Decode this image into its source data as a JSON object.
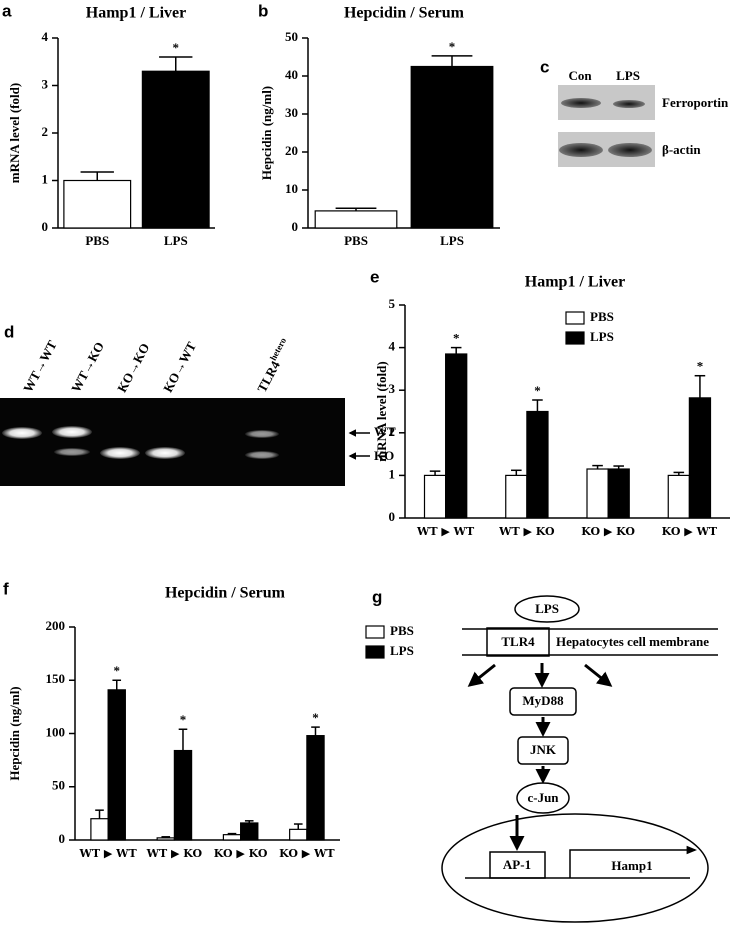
{
  "chart_data": [
    {
      "type": "bar",
      "label": "a",
      "title": "Hamp1 / Liver",
      "ylabel": "mRNA level (fold)",
      "categories": [
        "PBS",
        "LPS"
      ],
      "series": [
        {
          "values": [
            1.0,
            3.3
          ],
          "errors": [
            0.18,
            0.3
          ],
          "colors": [
            "#ffffff",
            "#000000"
          ],
          "annotations": [
            null,
            "*"
          ]
        }
      ],
      "ylim": [
        0,
        4
      ],
      "yticks": [
        0,
        1,
        2,
        3,
        4
      ]
    },
    {
      "type": "bar",
      "label": "b",
      "title": "Hepcidin / Serum",
      "ylabel": "Hepcidin (ng/ml)",
      "categories": [
        "PBS",
        "LPS"
      ],
      "series": [
        {
          "values": [
            4.5,
            42.5
          ],
          "errors": [
            0.7,
            2.8
          ],
          "colors": [
            "#ffffff",
            "#000000"
          ],
          "annotations": [
            null,
            "*"
          ]
        }
      ],
      "ylim": [
        0,
        50
      ],
      "yticks": [
        0,
        10,
        20,
        30,
        40,
        50
      ]
    },
    {
      "type": "bar",
      "label": "e",
      "title": "Hamp1 / Liver",
      "ylabel": "mRNA level (fold)",
      "categories": [
        "WT ▶ WT",
        "WT ▶ KO",
        "KO ▶ KO",
        "KO ▶ WT"
      ],
      "series": [
        {
          "name": "PBS",
          "color": "#ffffff",
          "values": [
            1.0,
            1.0,
            1.15,
            1.0
          ],
          "errors": [
            0.1,
            0.12,
            0.08,
            0.07
          ],
          "annotations": [
            null,
            null,
            null,
            null
          ]
        },
        {
          "name": "LPS",
          "color": "#000000",
          "values": [
            3.85,
            2.5,
            1.15,
            2.82
          ],
          "errors": [
            0.15,
            0.27,
            0.07,
            0.52
          ],
          "annotations": [
            "*",
            "*",
            null,
            "*"
          ]
        }
      ],
      "ylim": [
        0,
        5
      ],
      "yticks": [
        0,
        1,
        2,
        3,
        4,
        5
      ],
      "legend": "upper right"
    },
    {
      "type": "bar",
      "label": "f",
      "title": "Hepcidin / Serum",
      "ylabel": "Hepcidin (ng/ml)",
      "categories": [
        "WT ▶ WT",
        "WT ▶ KO",
        "KO ▶ KO",
        "KO ▶ WT"
      ],
      "series": [
        {
          "name": "PBS",
          "color": "#ffffff",
          "values": [
            20,
            2,
            5,
            10
          ],
          "errors": [
            8,
            1,
            1,
            5
          ],
          "annotations": [
            null,
            null,
            null,
            null
          ]
        },
        {
          "name": "LPS",
          "color": "#000000",
          "values": [
            141,
            84,
            16,
            98
          ],
          "errors": [
            9,
            20,
            2,
            8
          ],
          "annotations": [
            "*",
            "*",
            null,
            "*"
          ]
        }
      ],
      "ylim": [
        0,
        200
      ],
      "yticks": [
        0,
        50,
        100,
        150,
        200
      ],
      "legend": "upper right"
    }
  ],
  "blot": {
    "label": "c",
    "lanes": [
      "Con",
      "LPS"
    ],
    "rows": [
      "Ferroportin",
      "β-actin"
    ]
  },
  "gel": {
    "label": "d",
    "lanes": [
      "WT→WT",
      "WT→KO",
      "KO→KO",
      "KO→WT"
    ],
    "control": {
      "text": "TLR4",
      "sup": "hetero"
    },
    "bands": [
      "WT",
      "KO"
    ]
  },
  "diagram": {
    "label": "g",
    "ligand": "LPS",
    "receptor": "TLR4",
    "membrane": "Hepatocytes cell membrane",
    "adaptor": "MyD88",
    "kinase": "JNK",
    "factor": "c-Jun",
    "element": "AP-1",
    "gene": "Hamp1"
  }
}
